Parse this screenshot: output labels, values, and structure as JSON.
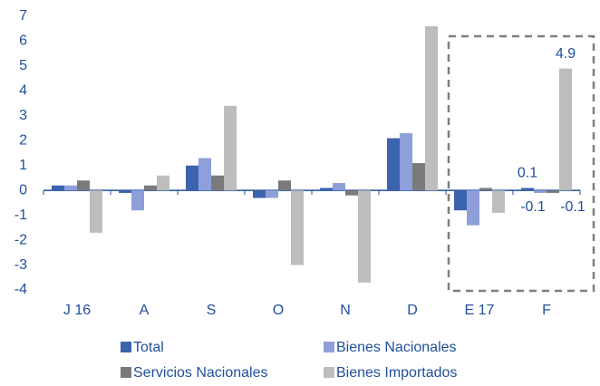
{
  "chart_data": {
    "type": "bar",
    "categories": [
      "J 16",
      "A",
      "S",
      "O",
      "N",
      "D",
      "E 17",
      "F"
    ],
    "series": [
      {
        "name": "Total",
        "color": "#3c63ad",
        "values": [
          0.2,
          -0.1,
          1.0,
          -0.3,
          0.1,
          2.1,
          -0.8,
          0.1
        ],
        "value_labels": [
          null,
          null,
          null,
          null,
          null,
          null,
          null,
          "0.1"
        ]
      },
      {
        "name": "Bienes Nacionales",
        "color": "#8e9fda",
        "values": [
          0.2,
          -0.8,
          1.3,
          -0.3,
          0.3,
          2.3,
          -1.4,
          -0.1
        ],
        "value_labels": [
          null,
          null,
          null,
          null,
          null,
          null,
          null,
          "-0.1"
        ]
      },
      {
        "name": "Servicios Nacionales",
        "color": "#7a7a7a",
        "values": [
          0.4,
          0.2,
          0.6,
          0.4,
          -0.2,
          1.1,
          0.1,
          -0.1
        ],
        "value_labels": [
          null,
          null,
          null,
          null,
          null,
          null,
          null,
          "-0.1"
        ]
      },
      {
        "name": "Bienes Importados",
        "color": "#bdbdbd",
        "values": [
          -1.7,
          0.6,
          3.4,
          -3.0,
          -3.7,
          6.6,
          -0.9,
          4.9
        ],
        "value_labels": [
          null,
          null,
          null,
          null,
          null,
          null,
          null,
          "4.9"
        ]
      }
    ],
    "ylim": [
      -4,
      7
    ],
    "yticks": [
      -4,
      -3,
      -2,
      -1,
      0,
      1,
      2,
      3,
      4,
      5,
      6,
      7
    ],
    "grid": false
  }
}
